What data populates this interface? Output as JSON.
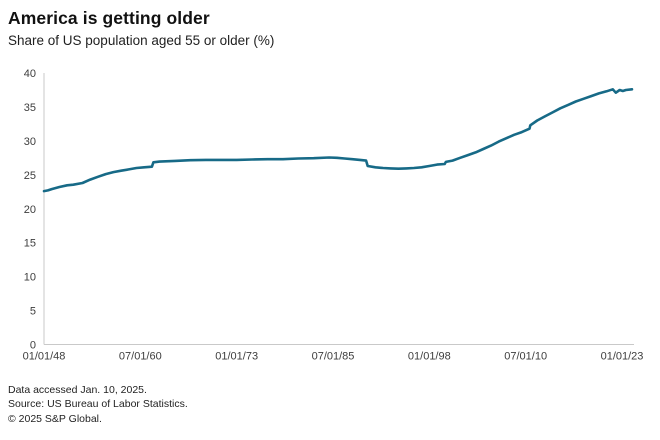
{
  "header": {
    "title": "America is getting older",
    "subtitle": "Share of US population aged 55 or older (%)"
  },
  "chart_data": {
    "type": "line",
    "title": "America is getting older",
    "subtitle": "Share of US population aged 55 or older (%)",
    "xlabel": "",
    "ylabel": "Share of US population aged 55 or older (%)",
    "ylim": [
      0,
      40
    ],
    "xlim": [
      1948,
      2024.5
    ],
    "grid": false,
    "legend": "none",
    "line_color": "#176a87",
    "axis_color": "#c9c9c9",
    "tick_text_color": "#3d3d3d",
    "yticks": [
      0,
      5,
      10,
      15,
      20,
      25,
      30,
      35,
      40
    ],
    "xticks": [
      {
        "year": 1948.0,
        "label": "01/01/48"
      },
      {
        "year": 1960.5,
        "label": "07/01/60"
      },
      {
        "year": 1973.0,
        "label": "01/01/73"
      },
      {
        "year": 1985.5,
        "label": "07/01/85"
      },
      {
        "year": 1998.0,
        "label": "01/01/98"
      },
      {
        "year": 2010.5,
        "label": "07/01/10"
      },
      {
        "year": 2023.0,
        "label": "01/01/23"
      }
    ],
    "series": [
      {
        "name": "Share of US population aged 55 or older (%)",
        "x": [
          1948.0,
          1948.5,
          1949,
          1950,
          1951,
          1951.8,
          1953,
          1954,
          1955,
          1956,
          1957,
          1958,
          1959,
          1960,
          1961,
          1962.0,
          1962.2,
          1963,
          1965,
          1967,
          1969,
          1971,
          1973,
          1975,
          1977,
          1979,
          1981,
          1983,
          1985,
          1986,
          1987,
          1988,
          1989,
          1989.8,
          1990.0,
          1991,
          1992,
          1993,
          1994,
          1995,
          1996,
          1997,
          1998,
          1999,
          2000.0,
          2000.15,
          2001,
          2002,
          2003,
          2004,
          2005,
          2006,
          2007,
          2008,
          2009,
          2010,
          2011.0,
          2011.1,
          2012,
          2013,
          2014,
          2015,
          2016,
          2017,
          2018,
          2019,
          2020,
          2021,
          2021.8,
          2022.2,
          2022.7,
          2023.1,
          2023.5,
          2024.3
        ],
        "values": [
          22.6,
          22.7,
          22.9,
          23.2,
          23.45,
          23.55,
          23.8,
          24.3,
          24.7,
          25.1,
          25.4,
          25.6,
          25.8,
          26.0,
          26.1,
          26.2,
          26.85,
          26.95,
          27.05,
          27.15,
          27.2,
          27.2,
          27.2,
          27.25,
          27.3,
          27.3,
          27.4,
          27.45,
          27.55,
          27.5,
          27.4,
          27.3,
          27.2,
          27.1,
          26.3,
          26.1,
          26.0,
          25.95,
          25.9,
          25.95,
          26.0,
          26.1,
          26.3,
          26.5,
          26.6,
          26.9,
          27.1,
          27.5,
          27.9,
          28.3,
          28.8,
          29.3,
          29.9,
          30.4,
          30.9,
          31.3,
          31.8,
          32.3,
          33.0,
          33.6,
          34.2,
          34.8,
          35.3,
          35.8,
          36.2,
          36.6,
          37.0,
          37.3,
          37.6,
          37.1,
          37.5,
          37.35,
          37.5,
          37.6
        ]
      }
    ]
  },
  "footer": {
    "lines": [
      "Data accessed Jan. 10, 2025.",
      "Source: US Bureau of Labor Statistics.",
      "© 2025 S&P Global."
    ]
  }
}
